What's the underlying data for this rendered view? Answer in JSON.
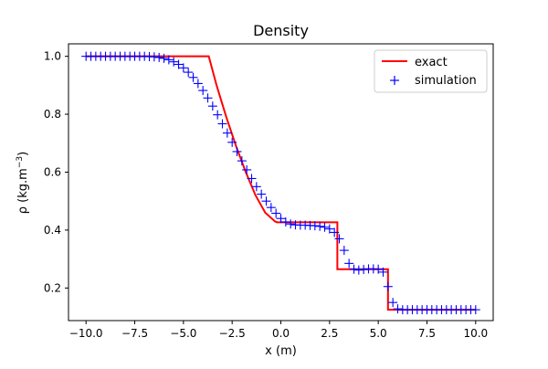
{
  "chart_data": {
    "type": "line",
    "title": "Density",
    "xlabel": "x (m)",
    "ylabel_main": "ρ (kg.m",
    "ylabel_exp": "−3",
    "ylabel_close": ")",
    "xlim": [
      -10.9,
      10.9
    ],
    "ylim": [
      0.0875,
      1.043
    ],
    "xticks": [
      -10.0,
      -7.5,
      -5.0,
      -2.5,
      0.0,
      2.5,
      5.0,
      7.5,
      10.0
    ],
    "xtick_labels": [
      "−10.0",
      "−7.5",
      "−5.0",
      "−2.5",
      "0.0",
      "2.5",
      "5.0",
      "7.5",
      "10.0"
    ],
    "yticks": [
      0.2,
      0.4,
      0.6,
      0.8,
      1.0
    ],
    "ytick_labels": [
      "0.2",
      "0.4",
      "0.6",
      "0.8",
      "1.0"
    ],
    "legend_position": "top-right",
    "series": [
      {
        "name": "exact",
        "style": "line",
        "color": "#ff0000",
        "x": [
          -10.0,
          -3.7,
          -3.3,
          -2.8,
          -2.3,
          -1.8,
          -1.3,
          -0.8,
          -0.3,
          -0.2,
          2.9,
          2.9,
          3.0,
          5.5,
          5.5,
          10.0
        ],
        "y": [
          1.0,
          1.0,
          0.9,
          0.79,
          0.69,
          0.6,
          0.52,
          0.46,
          0.43,
          0.427,
          0.427,
          0.265,
          0.265,
          0.265,
          0.125,
          0.125
        ]
      },
      {
        "name": "simulation",
        "style": "marker",
        "marker": "+",
        "color": "#0000ff",
        "x": [
          -10.0,
          -9.75,
          -9.5,
          -9.25,
          -9.0,
          -8.75,
          -8.5,
          -8.25,
          -8.0,
          -7.75,
          -7.5,
          -7.25,
          -7.0,
          -6.75,
          -6.5,
          -6.25,
          -6.0,
          -5.75,
          -5.5,
          -5.25,
          -5.0,
          -4.75,
          -4.5,
          -4.25,
          -4.0,
          -3.75,
          -3.5,
          -3.25,
          -3.0,
          -2.75,
          -2.5,
          -2.25,
          -2.0,
          -1.75,
          -1.5,
          -1.25,
          -1.0,
          -0.75,
          -0.5,
          -0.25,
          0.0,
          0.25,
          0.5,
          0.75,
          1.0,
          1.25,
          1.5,
          1.75,
          2.0,
          2.25,
          2.5,
          2.75,
          3.0,
          3.25,
          3.5,
          3.75,
          4.0,
          4.25,
          4.5,
          4.75,
          5.0,
          5.25,
          5.5,
          5.75,
          6.0,
          6.25,
          6.5,
          6.75,
          7.0,
          7.25,
          7.5,
          7.75,
          8.0,
          8.25,
          8.5,
          8.75,
          9.0,
          9.25,
          9.5,
          9.75,
          10.0
        ],
        "y": [
          1.0,
          1.0,
          1.0,
          1.0,
          1.0,
          1.0,
          1.0,
          1.0,
          1.0,
          1.0,
          1.0,
          1.0,
          1.0,
          0.999,
          0.998,
          0.996,
          0.993,
          0.988,
          0.981,
          0.972,
          0.96,
          0.945,
          0.927,
          0.906,
          0.882,
          0.856,
          0.828,
          0.798,
          0.767,
          0.735,
          0.703,
          0.671,
          0.639,
          0.608,
          0.578,
          0.55,
          0.524,
          0.5,
          0.478,
          0.458,
          0.44,
          0.428,
          0.421,
          0.418,
          0.417,
          0.417,
          0.416,
          0.415,
          0.413,
          0.41,
          0.404,
          0.392,
          0.37,
          0.33,
          0.285,
          0.265,
          0.262,
          0.264,
          0.266,
          0.266,
          0.265,
          0.255,
          0.205,
          0.15,
          0.128,
          0.125,
          0.125,
          0.125,
          0.125,
          0.125,
          0.125,
          0.125,
          0.125,
          0.125,
          0.125,
          0.125,
          0.125,
          0.125,
          0.125,
          0.125,
          0.125
        ]
      }
    ]
  }
}
